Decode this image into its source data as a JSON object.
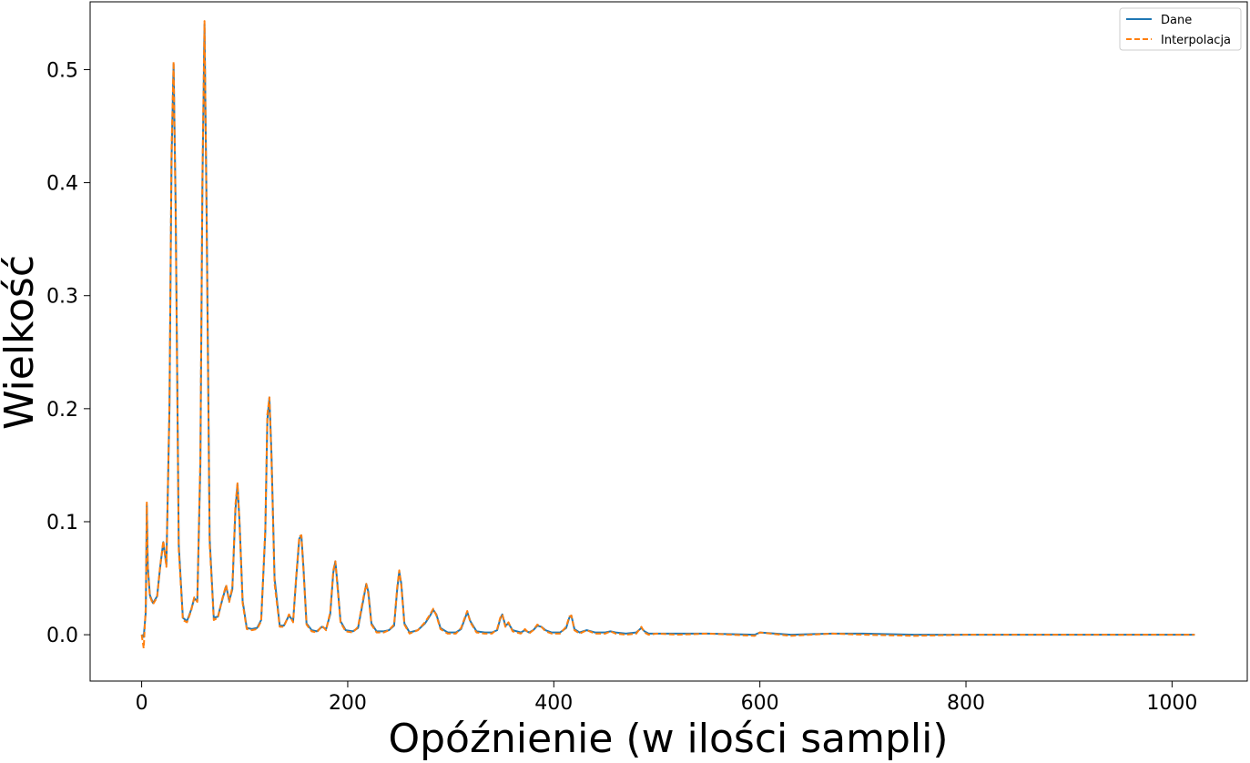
{
  "chart_data": {
    "type": "line",
    "xlabel": "Opóźnienie (w ilości sampli)",
    "ylabel": "Wielkość",
    "xlim": [
      -50,
      1073
    ],
    "ylim": [
      -0.041,
      0.56
    ],
    "xticks": [
      0,
      200,
      400,
      600,
      800,
      1000
    ],
    "yticks": [
      0.0,
      0.1,
      0.2,
      0.3,
      0.4,
      0.5
    ],
    "xtick_labels": [
      "0",
      "200",
      "400",
      "600",
      "800",
      "1000"
    ],
    "ytick_labels": [
      "0.0",
      "0.1",
      "0.2",
      "0.3",
      "0.4",
      "0.5"
    ],
    "grid": false,
    "legend_position": "top-right",
    "series": [
      {
        "name": "Dane",
        "color": "#1f77b4",
        "style": "solid",
        "x": [
          0,
          2,
          4,
          5,
          6,
          8,
          11,
          15,
          18,
          21,
          24,
          27,
          29,
          31,
          33,
          36,
          40,
          44,
          48,
          51,
          54,
          57,
          59,
          61,
          63,
          66,
          70,
          74,
          78,
          82,
          85,
          88,
          91,
          93,
          95,
          98,
          102,
          107,
          112,
          116,
          120,
          122,
          124,
          126,
          129,
          134,
          138,
          143,
          147,
          150,
          153,
          155,
          157,
          160,
          165,
          170,
          175,
          179,
          183,
          186,
          188,
          190,
          193,
          198,
          205,
          210,
          215,
          218,
          220,
          223,
          228,
          235,
          240,
          245,
          248,
          250,
          252,
          255,
          260,
          268,
          275,
          280,
          283,
          286,
          290,
          297,
          305,
          310,
          314,
          316,
          319,
          325,
          333,
          340,
          345,
          348,
          350,
          353,
          356,
          360,
          368,
          372,
          376,
          380,
          384,
          388,
          392,
          398,
          406,
          412,
          415,
          417,
          420,
          425,
          432,
          440,
          450,
          455,
          460,
          470,
          480,
          485,
          488,
          492,
          500,
          520,
          550,
          595,
          600,
          630,
          670,
          700,
          750,
          800,
          850,
          900,
          950,
          1000,
          1022
        ],
        "y": [
          0.0,
          -0.002,
          0.02,
          0.115,
          0.06,
          0.035,
          0.028,
          0.034,
          0.06,
          0.082,
          0.062,
          0.2,
          0.42,
          0.505,
          0.38,
          0.08,
          0.015,
          0.012,
          0.022,
          0.032,
          0.03,
          0.15,
          0.4,
          0.54,
          0.38,
          0.085,
          0.015,
          0.016,
          0.03,
          0.043,
          0.03,
          0.04,
          0.11,
          0.133,
          0.1,
          0.03,
          0.006,
          0.005,
          0.006,
          0.013,
          0.09,
          0.19,
          0.21,
          0.16,
          0.05,
          0.008,
          0.008,
          0.017,
          0.012,
          0.05,
          0.085,
          0.088,
          0.06,
          0.01,
          0.004,
          0.003,
          0.007,
          0.005,
          0.018,
          0.055,
          0.065,
          0.045,
          0.012,
          0.004,
          0.003,
          0.006,
          0.03,
          0.045,
          0.038,
          0.01,
          0.003,
          0.003,
          0.004,
          0.008,
          0.04,
          0.056,
          0.045,
          0.01,
          0.002,
          0.004,
          0.01,
          0.017,
          0.022,
          0.018,
          0.006,
          0.002,
          0.002,
          0.005,
          0.015,
          0.02,
          0.012,
          0.003,
          0.002,
          0.002,
          0.004,
          0.014,
          0.018,
          0.008,
          0.01,
          0.004,
          0.002,
          0.004,
          0.002,
          0.004,
          0.008,
          0.007,
          0.004,
          0.002,
          0.002,
          0.006,
          0.015,
          0.017,
          0.005,
          0.002,
          0.004,
          0.002,
          0.002,
          0.003,
          0.002,
          0.001,
          0.002,
          0.006,
          0.003,
          0.001,
          0.001,
          0.001,
          0.001,
          0.0,
          0.002,
          0.0,
          0.001,
          0.001,
          0.0,
          0.0,
          0.0,
          0.0,
          0.0,
          0.0,
          0.0
        ]
      },
      {
        "name": "Interpolacja",
        "color": "#ff7f0e",
        "style": "dashed",
        "x": [
          0,
          2,
          4,
          5,
          6,
          8,
          11,
          15,
          18,
          21,
          24,
          27,
          29,
          31,
          33,
          36,
          40,
          44,
          48,
          51,
          54,
          57,
          59,
          61,
          63,
          66,
          70,
          74,
          78,
          82,
          85,
          88,
          91,
          93,
          95,
          98,
          102,
          107,
          112,
          116,
          120,
          122,
          124,
          126,
          129,
          134,
          138,
          143,
          147,
          150,
          153,
          155,
          157,
          160,
          165,
          170,
          175,
          179,
          183,
          186,
          188,
          190,
          193,
          198,
          205,
          210,
          215,
          218,
          220,
          223,
          228,
          235,
          240,
          245,
          248,
          250,
          252,
          255,
          260,
          268,
          275,
          280,
          283,
          286,
          290,
          297,
          305,
          310,
          314,
          316,
          319,
          325,
          333,
          340,
          345,
          348,
          350,
          353,
          356,
          360,
          368,
          372,
          376,
          380,
          384,
          388,
          392,
          398,
          406,
          412,
          415,
          417,
          420,
          425,
          432,
          440,
          450,
          455,
          460,
          470,
          480,
          485,
          488,
          492,
          500,
          520,
          550,
          595,
          600,
          630,
          670,
          700,
          750,
          800,
          850,
          900,
          950,
          1000,
          1022
        ],
        "y": [
          0.0,
          -0.012,
          0.025,
          0.117,
          0.058,
          0.034,
          0.027,
          0.033,
          0.061,
          0.083,
          0.06,
          0.205,
          0.43,
          0.507,
          0.37,
          0.075,
          0.013,
          0.011,
          0.021,
          0.033,
          0.029,
          0.16,
          0.41,
          0.543,
          0.37,
          0.08,
          0.013,
          0.015,
          0.031,
          0.044,
          0.029,
          0.042,
          0.115,
          0.134,
          0.098,
          0.028,
          0.005,
          0.004,
          0.005,
          0.012,
          0.095,
          0.195,
          0.21,
          0.155,
          0.045,
          0.007,
          0.007,
          0.018,
          0.011,
          0.052,
          0.087,
          0.088,
          0.058,
          0.009,
          0.003,
          0.002,
          0.008,
          0.004,
          0.02,
          0.057,
          0.065,
          0.043,
          0.011,
          0.003,
          0.002,
          0.007,
          0.032,
          0.045,
          0.036,
          0.009,
          0.002,
          0.002,
          0.004,
          0.009,
          0.042,
          0.057,
          0.043,
          0.009,
          0.001,
          0.004,
          0.011,
          0.018,
          0.023,
          0.017,
          0.005,
          0.001,
          0.001,
          0.006,
          0.016,
          0.021,
          0.011,
          0.002,
          0.001,
          0.001,
          0.005,
          0.015,
          0.018,
          0.007,
          0.011,
          0.003,
          0.001,
          0.005,
          0.001,
          0.004,
          0.009,
          0.007,
          0.003,
          0.001,
          0.001,
          0.007,
          0.016,
          0.017,
          0.004,
          0.001,
          0.004,
          0.001,
          0.001,
          0.003,
          0.001,
          0.0,
          0.001,
          0.007,
          0.002,
          0.0,
          0.001,
          0.0,
          0.001,
          -0.001,
          0.002,
          -0.001,
          0.001,
          0.0,
          -0.001,
          0.0,
          0.0,
          0.0,
          0.0,
          0.0,
          0.0
        ]
      }
    ]
  }
}
